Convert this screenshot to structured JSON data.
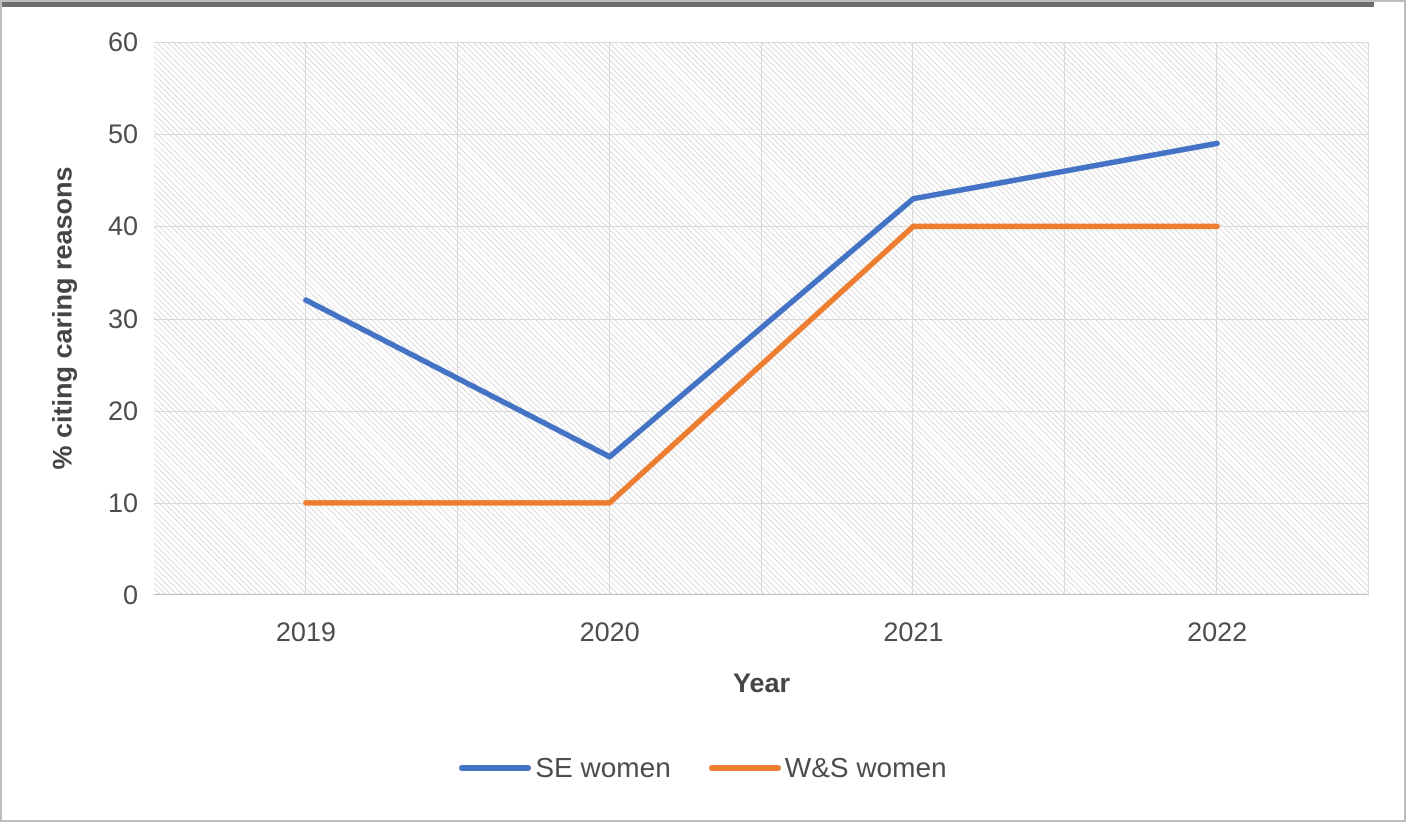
{
  "chart_data": {
    "type": "line",
    "title": "",
    "xlabel": "Year",
    "ylabel": "% citing caring reasons",
    "categories": [
      "2019",
      "2020",
      "2021",
      "2022"
    ],
    "series": [
      {
        "name": "SE women",
        "color": "#4472C4",
        "values": [
          32,
          15,
          43,
          49
        ]
      },
      {
        "name": "W&S women",
        "color": "#ED7D31",
        "values": [
          10,
          10,
          40,
          40
        ]
      }
    ],
    "ylim": [
      0,
      60
    ],
    "y_ticks": [
      0,
      10,
      20,
      30,
      40,
      50,
      60
    ],
    "grid": "major horizontal gridlines every 10; vertical gridlines at category boundaries and centers",
    "legend_position": "bottom",
    "plot_background": "light diagonal hatch pattern"
  },
  "colors": {
    "series_blue": "#4472C4",
    "series_orange": "#ED7D31",
    "gridline": "#d9d9d9",
    "axis_line": "#bfbfbf",
    "hatch_line": "#dcdcdc",
    "text": "#4d4d4d",
    "top_strip": "#6e6e6e",
    "figure_border": "#bcbcbc"
  }
}
